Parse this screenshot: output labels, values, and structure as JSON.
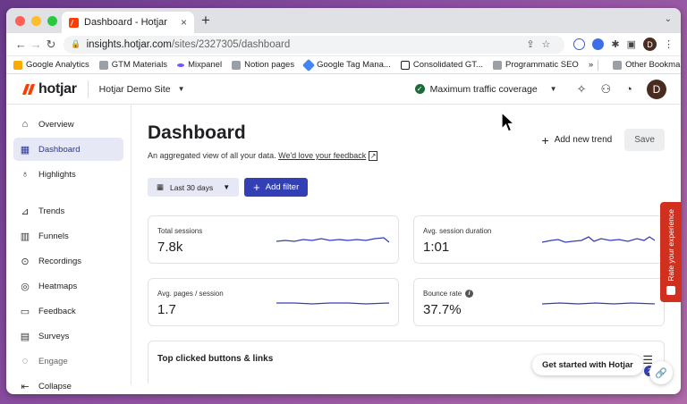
{
  "browser": {
    "tab_title": "Dashboard - Hotjar",
    "tab_close": "×",
    "new_tab": "+",
    "url_host": "insights.hotjar.com",
    "url_path": "/sites/2327305/dashboard",
    "profile_initial": "D",
    "bookmarks": [
      "Google Analytics",
      "GTM Materials",
      "Mixpanel",
      "Notion pages",
      "Google Tag Mana...",
      "Consolidated GT...",
      "Programmatic SEO"
    ],
    "more_bookmarks": "»",
    "other_bookmarks": "Other Bookmarks"
  },
  "header": {
    "logo_text": "hotjar",
    "site_name": "Hotjar Demo Site",
    "traffic_coverage": "Maximum traffic coverage",
    "user_initial": "D"
  },
  "sidebar": {
    "items": [
      {
        "label": "Overview",
        "icon": "home-icon"
      },
      {
        "label": "Dashboard",
        "icon": "dashboard-icon"
      },
      {
        "label": "Highlights",
        "icon": "lightbulb-icon"
      },
      {
        "label": "Trends",
        "icon": "trends-icon"
      },
      {
        "label": "Funnels",
        "icon": "funnels-icon"
      },
      {
        "label": "Recordings",
        "icon": "recordings-icon"
      },
      {
        "label": "Heatmaps",
        "icon": "heatmaps-icon"
      },
      {
        "label": "Feedback",
        "icon": "feedback-icon"
      },
      {
        "label": "Surveys",
        "icon": "surveys-icon"
      },
      {
        "label": "Engage",
        "icon": "engage-icon"
      },
      {
        "label": "Collapse",
        "icon": "collapse-icon"
      }
    ]
  },
  "main": {
    "title": "Dashboard",
    "subtitle": "An aggregated view of all your data.",
    "feedback_link": "We'd love your feedback",
    "add_trend": "Add new trend",
    "save": "Save",
    "date_filter": "Last 30 days",
    "add_filter": "Add filter",
    "cards": [
      {
        "label": "Total sessions",
        "value": "7.8k"
      },
      {
        "label": "Avg. session duration",
        "value": "1:01"
      },
      {
        "label": "Avg. pages / session",
        "value": "1.7"
      },
      {
        "label": "Bounce rate",
        "value": "37.7%"
      }
    ],
    "top_clicked": "Top clicked buttons & links",
    "badge_count": "2"
  },
  "widgets": {
    "get_started": "Get started with Hotjar",
    "rate_experience": "Rate your experience"
  },
  "colors": {
    "brand": "#ff3c00",
    "accent": "#3340b5",
    "feedback_tab": "#d1301e"
  }
}
